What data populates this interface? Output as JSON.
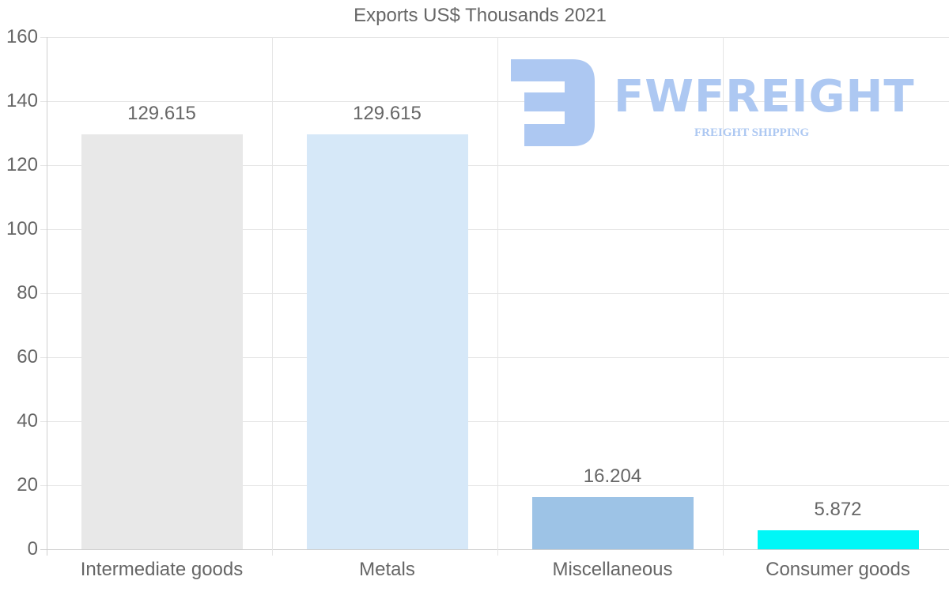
{
  "chart_data": {
    "type": "bar",
    "title": "Exports US$ Thousands 2021",
    "xlabel": "",
    "ylabel": "",
    "categories": [
      "Intermediate goods",
      "Metals",
      "Miscellaneous",
      "Consumer goods"
    ],
    "values": [
      129.615,
      129.615,
      16.204,
      5.872
    ],
    "value_labels": [
      "129.615",
      "129.615",
      "16.204",
      "5.872"
    ],
    "colors": [
      "#e8e8e8",
      "#d6e8f8",
      "#9dc3e6",
      "#00f7f7"
    ],
    "ylim": [
      0,
      160
    ],
    "yticks": [
      0,
      20,
      40,
      60,
      80,
      100,
      120,
      140,
      160
    ],
    "ytick_labels": [
      "0",
      "20",
      "40",
      "60",
      "80",
      "100",
      "120",
      "140",
      "160"
    ],
    "grid": true,
    "legend": null
  },
  "watermark": {
    "brand": "FWFREIGHT",
    "tagline": "FREIGHT SHIPPING",
    "color": "#adc8f2"
  },
  "style": {
    "text_color": "#666666",
    "grid_color": "#e5e5e5",
    "axis_color": "#cfcfcf"
  }
}
